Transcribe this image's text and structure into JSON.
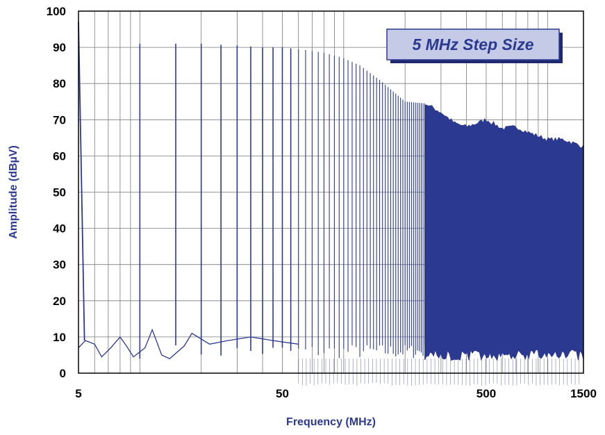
{
  "chart_data": {
    "type": "line",
    "title": "",
    "annotation": "5 MHz Step Size",
    "xlabel": "Frequency (MHz)",
    "ylabel": "Amplitude (dBµV)",
    "x_scale": "log",
    "xlim": [
      5,
      1500
    ],
    "ylim": [
      0,
      100
    ],
    "x_tick_labels": [
      "5",
      "50",
      "500",
      "1500"
    ],
    "y_tick_labels": [
      "0",
      "10",
      "20",
      "30",
      "40",
      "50",
      "60",
      "70",
      "80",
      "90",
      "100"
    ],
    "grid": true,
    "step_size_mhz": 5,
    "series": [
      {
        "color": "#2b3990",
        "envelope": {
          "x": [
            5,
            10,
            15,
            20,
            30,
            40,
            50,
            60,
            70,
            80,
            100,
            120,
            150,
            200,
            250,
            300,
            350,
            400,
            450,
            500,
            600,
            700,
            800,
            1000,
            1200,
            1500
          ],
          "y": [
            97,
            91,
            91,
            91,
            90.5,
            90,
            90,
            89.5,
            89,
            88.5,
            87,
            85,
            81,
            75,
            74.5,
            72,
            69,
            68,
            69,
            70,
            67.5,
            68,
            66.5,
            64.5,
            64.5,
            62.5
          ]
        },
        "noise_floor": {
          "x": [
            5,
            5.4,
            6,
            6.5,
            7.2,
            8,
            8.6,
            9.3,
            10.6,
            11.5,
            12.8,
            14,
            16.5,
            18,
            22,
            27,
            35,
            45,
            60
          ],
          "y": [
            7,
            9,
            8,
            4.5,
            7,
            10,
            7.5,
            4.5,
            7,
            12,
            5,
            4,
            7.5,
            11,
            8,
            9,
            10,
            9,
            8
          ]
        }
      }
    ]
  }
}
